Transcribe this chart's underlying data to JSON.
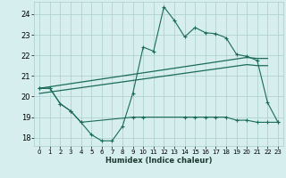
{
  "xlabel": "Humidex (Indice chaleur)",
  "bg_color": "#d6eeee",
  "grid_color": "#aacccc",
  "line_color": "#1a6b5a",
  "xlim": [
    -0.5,
    23.5
  ],
  "ylim": [
    17.6,
    24.6
  ],
  "xticks": [
    0,
    1,
    2,
    3,
    4,
    5,
    6,
    7,
    8,
    9,
    10,
    11,
    12,
    13,
    14,
    15,
    16,
    17,
    18,
    19,
    20,
    21,
    22,
    23
  ],
  "yticks": [
    18,
    19,
    20,
    21,
    22,
    23,
    24
  ],
  "line1_x": [
    0,
    1,
    2,
    3,
    4,
    5,
    6,
    7,
    8,
    9,
    10,
    11,
    12,
    13,
    14,
    15,
    16,
    17,
    18,
    19,
    20,
    21,
    22,
    23
  ],
  "line1_y": [
    20.4,
    20.4,
    19.65,
    19.3,
    18.75,
    18.15,
    17.85,
    17.85,
    18.55,
    20.15,
    22.4,
    22.2,
    24.35,
    23.7,
    22.9,
    23.35,
    23.1,
    23.05,
    22.85,
    22.05,
    21.95,
    21.75,
    19.7,
    18.75
  ],
  "line2_x": [
    0,
    20,
    21,
    22
  ],
  "line2_y": [
    20.4,
    21.9,
    21.85,
    21.85
  ],
  "line3_x": [
    0,
    20,
    21,
    22
  ],
  "line3_y": [
    20.15,
    21.55,
    21.5,
    21.5
  ],
  "line4_x": [
    0,
    1,
    2,
    3,
    4,
    9,
    10,
    14,
    15,
    16,
    17,
    18,
    19,
    20,
    21,
    22,
    23
  ],
  "line4_y": [
    20.4,
    20.4,
    19.65,
    19.3,
    18.75,
    19.0,
    19.0,
    19.0,
    19.0,
    19.0,
    19.0,
    19.0,
    18.85,
    18.85,
    18.75,
    18.75,
    18.75
  ],
  "figsize": [
    3.2,
    2.0
  ],
  "dpi": 100
}
